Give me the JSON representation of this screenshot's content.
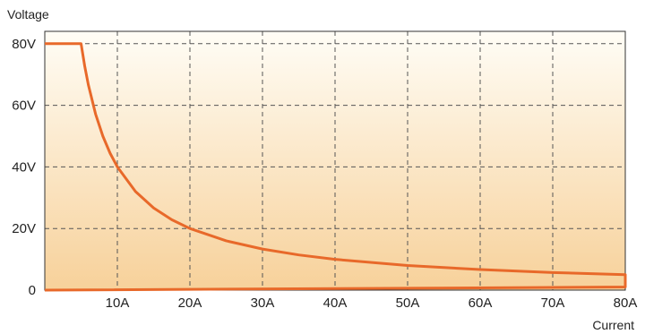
{
  "chart_data": {
    "type": "line",
    "title": "",
    "xlabel": "Current",
    "ylabel": "Voltage",
    "xlim": [
      0,
      80
    ],
    "ylim": [
      0,
      84
    ],
    "x_tick_values": [
      10,
      20,
      30,
      40,
      50,
      60,
      70,
      80
    ],
    "x_tick_labels": [
      "10A",
      "20A",
      "30A",
      "40A",
      "50A",
      "60A",
      "70A",
      "80A"
    ],
    "y_tick_values": [
      0,
      20,
      40,
      60,
      80
    ],
    "y_tick_labels": [
      "0",
      "20V",
      "40V",
      "60V",
      "80V"
    ],
    "grid": true,
    "legend": "none",
    "colors": {
      "line": "#e8692a",
      "gradient_top": "#fffdf6",
      "gradient_bottom": "#f7d19a",
      "grid": "#555555",
      "frame": "#333333"
    },
    "series": [
      {
        "points": [
          [
            0,
            0
          ],
          [
            80,
            1
          ],
          [
            80,
            5
          ],
          [
            70,
            5.71
          ],
          [
            60,
            6.67
          ],
          [
            50,
            8
          ],
          [
            40,
            10
          ],
          [
            35,
            11.43
          ],
          [
            30,
            13.33
          ],
          [
            25,
            16
          ],
          [
            20,
            20
          ],
          [
            17.5,
            22.86
          ],
          [
            15,
            26.67
          ],
          [
            12.5,
            32
          ],
          [
            10,
            40
          ],
          [
            9,
            44.44
          ],
          [
            8,
            50
          ],
          [
            7,
            57.14
          ],
          [
            6,
            66.67
          ],
          [
            5.5,
            72.73
          ],
          [
            5,
            80
          ],
          [
            0,
            80
          ]
        ]
      }
    ]
  }
}
